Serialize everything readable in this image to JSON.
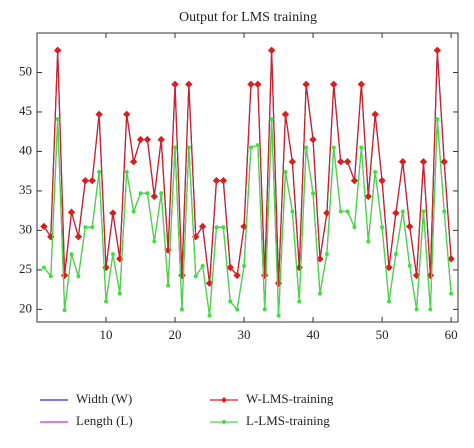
{
  "chart_data": {
    "type": "line",
    "title": "Output for LMS training",
    "x": [
      1,
      2,
      3,
      4,
      5,
      6,
      7,
      8,
      9,
      10,
      11,
      12,
      13,
      14,
      15,
      16,
      17,
      18,
      19,
      20,
      21,
      22,
      23,
      24,
      25,
      26,
      27,
      28,
      29,
      30,
      31,
      32,
      33,
      34,
      35,
      36,
      37,
      38,
      39,
      40,
      41,
      42,
      43,
      44,
      45,
      46,
      47,
      48,
      49,
      50,
      51,
      52,
      53,
      54,
      55,
      56,
      57,
      58,
      59,
      60
    ],
    "series": [
      {
        "name": "Width (W)",
        "color": "#2b2bd0",
        "marker": "none",
        "values": [
          30.5,
          29.2,
          52.8,
          24.3,
          32.3,
          29.2,
          36.3,
          36.3,
          44.7,
          25.3,
          32.2,
          26.4,
          44.7,
          38.7,
          41.5,
          41.5,
          34.3,
          41.5,
          27.5,
          48.5,
          24.3,
          48.5,
          29.2,
          30.5,
          23.3,
          36.3,
          36.3,
          25.3,
          24.3,
          30.5,
          48.5,
          48.5,
          24.3,
          52.8,
          23.3,
          44.7,
          38.7,
          25.3,
          48.5,
          41.5,
          26.4,
          32.2,
          48.5,
          38.7,
          38.7,
          36.3,
          48.5,
          34.3,
          44.7,
          36.3,
          25.3,
          32.2,
          38.7,
          30.5,
          24.3,
          38.7,
          24.3,
          52.8,
          38.7,
          26.4
        ]
      },
      {
        "name": "Length (L)",
        "color": "#d02bd0",
        "marker": "none",
        "values": [
          25.3,
          24.2,
          44.1,
          19.9,
          27.0,
          24.2,
          30.4,
          30.4,
          37.4,
          21.0,
          27.0,
          22.0,
          37.4,
          32.4,
          34.7,
          34.7,
          28.6,
          34.7,
          23.0,
          40.5,
          20.0,
          40.5,
          24.2,
          25.5,
          19.2,
          30.4,
          30.4,
          21.0,
          20.0,
          25.5,
          40.5,
          40.8,
          20.0,
          44.1,
          19.2,
          37.4,
          32.4,
          21.0,
          40.5,
          34.7,
          22.0,
          27.0,
          40.5,
          32.4,
          32.4,
          30.4,
          40.5,
          28.6,
          37.4,
          30.4,
          21.0,
          27.0,
          32.4,
          25.5,
          20.0,
          32.4,
          20.0,
          44.1,
          32.4,
          22.0
        ]
      },
      {
        "name": "W-LMS-training",
        "color": "#d62020",
        "marker": "diamond",
        "values": [
          30.5,
          29.2,
          52.8,
          24.3,
          32.3,
          29.2,
          36.3,
          36.3,
          44.7,
          25.3,
          32.2,
          26.4,
          44.7,
          38.7,
          41.5,
          41.5,
          34.3,
          41.5,
          27.5,
          48.5,
          24.3,
          48.5,
          29.2,
          30.5,
          23.3,
          36.3,
          36.3,
          25.3,
          24.3,
          30.5,
          48.5,
          48.5,
          24.3,
          52.8,
          23.3,
          44.7,
          38.7,
          25.3,
          48.5,
          41.5,
          26.4,
          32.2,
          48.5,
          38.7,
          38.7,
          36.3,
          48.5,
          34.3,
          44.7,
          36.3,
          25.3,
          32.2,
          38.7,
          30.5,
          24.3,
          38.7,
          24.3,
          52.8,
          38.7,
          26.4
        ]
      },
      {
        "name": "L-LMS-training",
        "color": "#3ee03e",
        "marker": "circle",
        "values": [
          25.3,
          24.2,
          44.1,
          19.9,
          27.0,
          24.2,
          30.4,
          30.4,
          37.4,
          21.0,
          27.0,
          22.0,
          37.4,
          32.4,
          34.7,
          34.7,
          28.6,
          34.7,
          23.0,
          40.5,
          20.0,
          40.5,
          24.2,
          25.5,
          19.2,
          30.4,
          30.4,
          21.0,
          20.0,
          25.5,
          40.5,
          40.8,
          20.0,
          44.1,
          19.2,
          37.4,
          32.4,
          21.0,
          40.5,
          34.7,
          22.0,
          27.0,
          40.5,
          32.4,
          32.4,
          30.4,
          40.5,
          28.6,
          37.4,
          30.4,
          21.0,
          27.0,
          32.4,
          25.5,
          20.0,
          32.4,
          20.0,
          44.1,
          32.4,
          22.0
        ]
      }
    ],
    "xlim": [
      0,
      61
    ],
    "xticks": [
      10,
      20,
      30,
      40,
      50,
      60
    ],
    "ylim": [
      18.4,
      55
    ],
    "yticks": [
      20,
      25,
      30,
      35,
      40,
      45,
      50
    ],
    "grid": false
  }
}
